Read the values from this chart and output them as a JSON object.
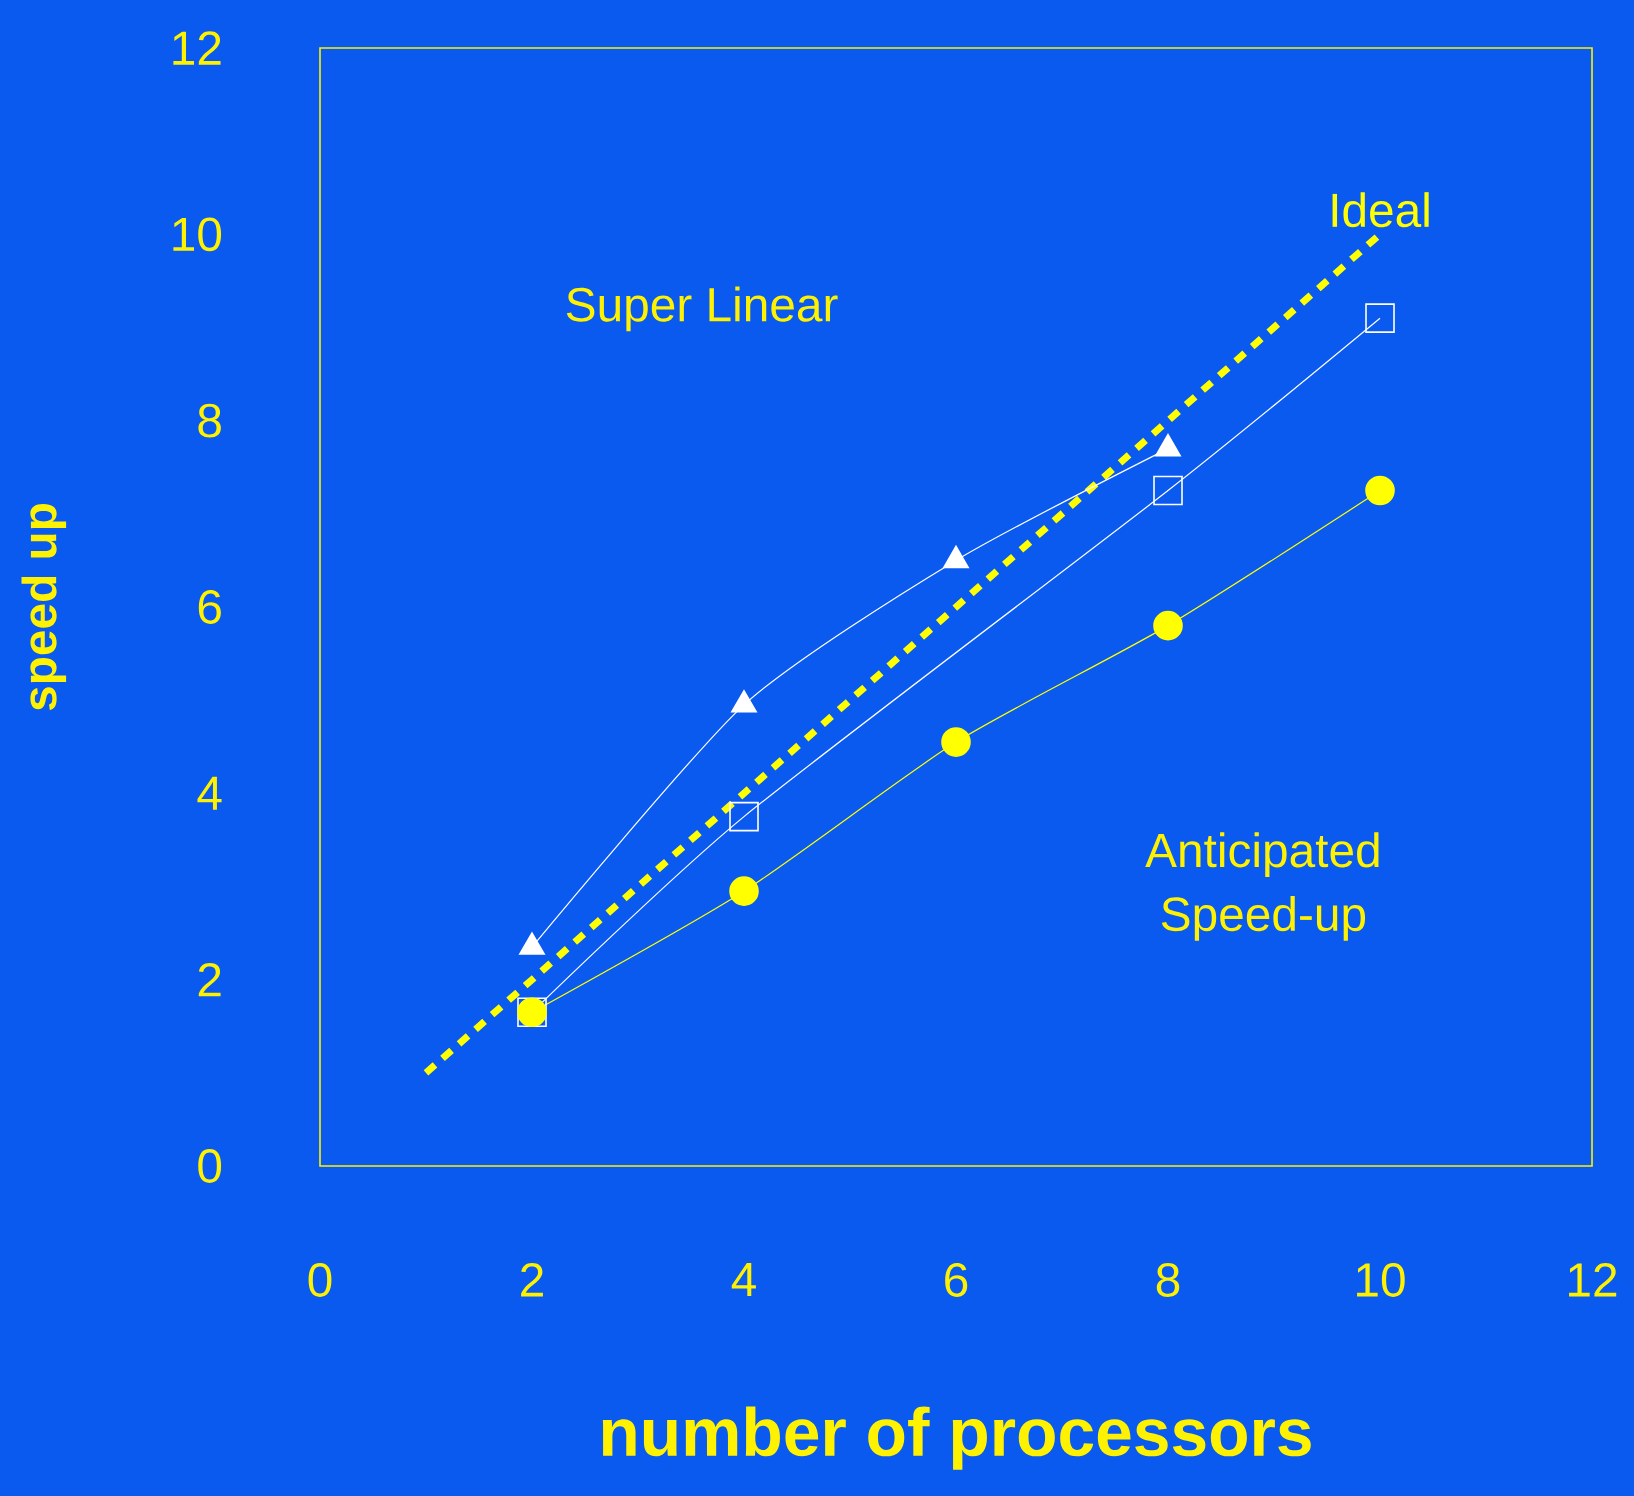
{
  "chart_data": {
    "type": "line",
    "xlabel": "number of processors",
    "ylabel": "speed up",
    "xlim": [
      0,
      12
    ],
    "ylim": [
      0,
      12
    ],
    "xticks": [
      0,
      2,
      4,
      6,
      8,
      10,
      12
    ],
    "yticks": [
      0,
      2,
      4,
      6,
      8,
      10,
      12
    ],
    "grid": false,
    "series": [
      {
        "name": "Ideal",
        "color": "#ffff00",
        "marker": "none",
        "line_style": "dashed",
        "x": [
          1,
          10
        ],
        "values": [
          1,
          10
        ]
      },
      {
        "color": "#ffffff",
        "marker": "triangle",
        "line_style": "solid",
        "x": [
          2,
          4,
          6,
          8
        ],
        "values": [
          2.35,
          4.95,
          6.5,
          7.7
        ]
      },
      {
        "color": "#ffffff",
        "marker": "square",
        "line_style": "solid",
        "x": [
          2,
          4,
          8,
          10
        ],
        "values": [
          1.65,
          3.75,
          7.25,
          9.1
        ]
      },
      {
        "color": "#ffff00",
        "marker": "circle",
        "line_style": "solid",
        "x": [
          2,
          4,
          6,
          8,
          10
        ],
        "values": [
          1.65,
          2.95,
          4.55,
          5.8,
          7.25
        ]
      }
    ],
    "annotations": [
      "Super Linear",
      "Anticipated Speed-up"
    ]
  }
}
